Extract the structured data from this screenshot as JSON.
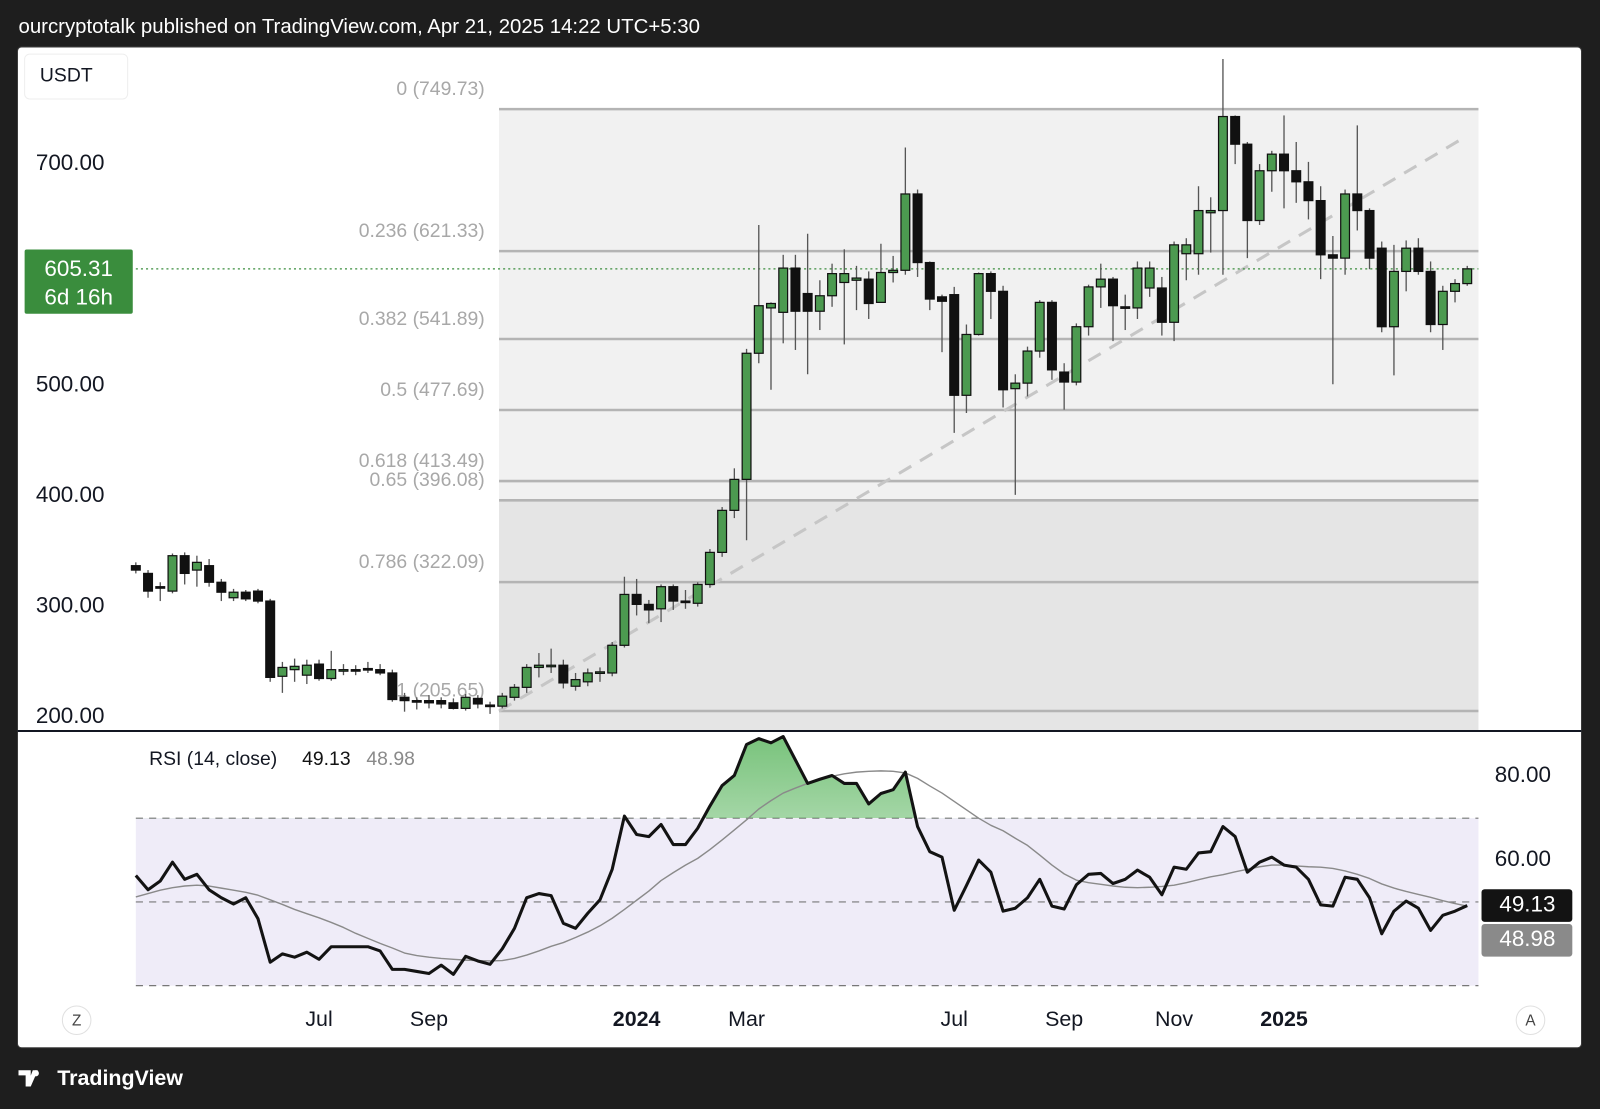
{
  "header": {
    "text": "ourcryptotalk published on TradingView.com, Apr 21, 2025 14:22 UTC+5:30"
  },
  "footer": {
    "brand": "TradingView"
  },
  "controls": {
    "left": "Z",
    "right": "A"
  },
  "chart_data": [
    {
      "type": "candlestick",
      "currency": "USDT",
      "countdown": "6d 16h",
      "up_color": "#4c9a50",
      "down_color": "#111111",
      "last_price_color": "#3a8d3d",
      "categories": [
        null,
        null,
        null,
        null,
        null,
        null,
        null,
        null,
        null,
        null,
        null,
        null,
        null,
        null,
        null,
        "Jul",
        null,
        null,
        null,
        null,
        null,
        null,
        null,
        null,
        "Sep",
        null,
        null,
        null,
        null,
        null,
        null,
        null,
        null,
        null,
        null,
        null,
        null,
        null,
        null,
        null,
        null,
        "2024",
        null,
        null,
        null,
        null,
        null,
        null,
        null,
        null,
        "Mar",
        null,
        null,
        null,
        null,
        null,
        null,
        null,
        null,
        null,
        null,
        null,
        null,
        null,
        null,
        null,
        null,
        "Jul",
        null,
        null,
        null,
        null,
        null,
        null,
        null,
        null,
        "Sep",
        null,
        null,
        null,
        null,
        null,
        null,
        null,
        null,
        "Nov",
        null,
        null,
        null,
        null,
        null,
        null,
        null,
        null,
        "2025",
        null,
        null,
        null,
        null,
        null,
        null,
        null,
        null,
        null,
        null,
        null,
        null,
        null,
        null,
        null
      ],
      "open": [
        337,
        330,
        318,
        314,
        346,
        333,
        337,
        322,
        308,
        313,
        314,
        305,
        237,
        243,
        238,
        248,
        235,
        243,
        243,
        244,
        243,
        240,
        218,
        215,
        215,
        215,
        213,
        208,
        217,
        211,
        210,
        218,
        227,
        245,
        247,
        247,
        228,
        232,
        240,
        240,
        265,
        311,
        302,
        298,
        318,
        305,
        303,
        320,
        349,
        387,
        415,
        529,
        570,
        566,
        606,
        583,
        567,
        581,
        593,
        595,
        596,
        575,
        602,
        604,
        673,
        611,
        580,
        582,
        491,
        546,
        601,
        585,
        497,
        502,
        531,
        575,
        512,
        503,
        553,
        589,
        596,
        571,
        570,
        588,
        588,
        557,
        619,
        619,
        656,
        658,
        743,
        718,
        649,
        694,
        709,
        694,
        684,
        667,
        618,
        615,
        673,
        658,
        624,
        553,
        603,
        624,
        603,
        555,
        585,
        592
      ],
      "high": [
        340,
        333,
        322,
        348,
        349,
        346,
        343,
        325,
        316,
        315,
        316,
        307,
        250,
        253,
        252,
        252,
        260,
        248,
        247,
        250,
        248,
        243,
        222,
        218,
        220,
        218,
        217,
        221,
        220,
        214,
        222,
        230,
        248,
        258,
        262,
        252,
        240,
        244,
        245,
        268,
        327,
        325,
        306,
        320,
        320,
        315,
        322,
        352,
        390,
        425,
        533,
        645,
        575,
        618,
        618,
        637,
        595,
        610,
        623,
        608,
        603,
        628,
        617,
        715,
        677,
        612,
        582,
        589,
        555,
        602,
        603,
        590,
        510,
        535,
        577,
        577,
        520,
        556,
        591,
        610,
        598,
        582,
        612,
        612,
        598,
        630,
        633,
        680,
        670,
        795,
        744,
        720,
        700,
        712,
        744,
        720,
        702,
        680,
        635,
        677,
        735,
        660,
        630,
        627,
        631,
        633,
        612,
        590,
        596,
        608
      ],
      "low": [
        330,
        308,
        305,
        312,
        320,
        318,
        318,
        305,
        305,
        305,
        303,
        232,
        222,
        232,
        230,
        233,
        233,
        238,
        238,
        240,
        238,
        214,
        205,
        207,
        208,
        208,
        207,
        206,
        208,
        203,
        208,
        215,
        222,
        236,
        240,
        226,
        224,
        228,
        232,
        237,
        263,
        292,
        285,
        286,
        297,
        298,
        300,
        317,
        345,
        380,
        360,
        520,
        496,
        538,
        532,
        510,
        550,
        571,
        537,
        568,
        560,
        575,
        593,
        600,
        598,
        568,
        530,
        457,
        475,
        545,
        560,
        480,
        401,
        490,
        525,
        505,
        478,
        500,
        545,
        570,
        540,
        550,
        560,
        580,
        545,
        540,
        595,
        600,
        620,
        600,
        700,
        615,
        645,
        675,
        660,
        665,
        650,
        596,
        501,
        600,
        640,
        605,
        548,
        509,
        585,
        600,
        548,
        532,
        575,
        590
      ],
      "close": [
        333,
        314,
        317,
        346,
        330,
        340,
        322,
        313,
        313,
        307,
        305,
        236,
        245,
        246,
        247,
        235,
        243,
        243,
        242,
        243,
        240,
        216,
        215,
        214,
        213,
        212,
        208,
        218,
        212,
        210,
        219,
        227,
        245,
        247,
        247,
        231,
        234,
        240,
        241,
        265,
        311,
        302,
        297,
        318,
        305,
        304,
        320,
        349,
        387,
        415,
        529,
        572,
        574,
        606,
        567,
        567,
        581,
        601,
        601,
        597,
        574,
        602,
        604,
        673,
        611,
        578,
        576,
        491,
        546,
        601,
        585,
        496,
        502,
        531,
        575,
        514,
        503,
        553,
        589,
        596,
        572,
        570,
        606,
        606,
        557,
        627,
        627,
        658,
        658,
        743,
        718,
        649,
        694,
        709,
        694,
        684,
        667,
        618,
        615,
        673,
        658,
        615,
        553,
        603,
        624,
        603,
        555,
        585,
        592,
        605.31
      ],
      "ylim": [
        188,
        805
      ],
      "yticks": [
        {
          "value": 700,
          "label": "700.00"
        },
        {
          "value": 500,
          "label": "500.00"
        },
        {
          "value": 400,
          "label": "400.00"
        },
        {
          "value": 300,
          "label": "300.00"
        },
        {
          "value": 200,
          "label": "200.00"
        }
      ],
      "grid": false,
      "fib_levels": [
        {
          "value": 749.73,
          "label": "0 (749.73)",
          "fill": "#f1f1f1"
        },
        {
          "value": 621.33,
          "label": "0.236 (621.33)",
          "fill": "#f1f1f1"
        },
        {
          "value": 541.89,
          "label": "0.382 (541.89)",
          "fill": "#f1f1f1"
        },
        {
          "value": 477.69,
          "label": "0.5 (477.69)",
          "fill": "#f1f1f1"
        },
        {
          "value": 413.49,
          "label": "0.618 (413.49)",
          "fill": "#f1f1f1"
        },
        {
          "value": 396.08,
          "label": "0.65 (396.08)",
          "fill": "#e5e5e5"
        },
        {
          "value": 322.09,
          "label": "0.786 (322.09)",
          "fill": "#e5e5e5"
        },
        {
          "value": 205.65,
          "label": "1 (205.65)",
          "fill": "#e5e5e5"
        }
      ],
      "fib_line_color": "#b4b4b4"
    },
    {
      "type": "line",
      "title": "RSI (14, close)",
      "ylim": [
        25.4,
        90.7
      ],
      "yticks": [
        {
          "value": 80,
          "label": "80.00"
        },
        {
          "value": 60,
          "label": "60.00"
        }
      ],
      "levels": [
        70,
        50,
        30
      ],
      "band_color": "#efecf8",
      "overbought_fill": "#4caf50",
      "series": [
        {
          "color": "#131313",
          "values": [
            56.3,
            52.9,
            55,
            59.5,
            55.4,
            56.6,
            52.9,
            51,
            49.5,
            51,
            46,
            35.6,
            37.6,
            36.8,
            38,
            36.3,
            39.3,
            39.3,
            39.3,
            39.3,
            38.3,
            33.9,
            33.9,
            33.4,
            32.9,
            34.9,
            32.7,
            37,
            35.9,
            35.1,
            38.8,
            43.7,
            51,
            52,
            51.5,
            44.9,
            43.7,
            47.3,
            50.5,
            57.8,
            70.5,
            66.1,
            65.6,
            68.5,
            63.7,
            63.7,
            67.6,
            72.9,
            77.8,
            80.2,
            87.6,
            89,
            88,
            89.5,
            83.9,
            78.3,
            79.3,
            80.2,
            78.3,
            78.3,
            73.4,
            75.9,
            76.8,
            81,
            68,
            62,
            60.7,
            48,
            53.9,
            60,
            57.1,
            47.8,
            48.5,
            51,
            55.4,
            49,
            48.3,
            54.1,
            56.6,
            56.8,
            54.4,
            55.4,
            57.6,
            55.9,
            51.7,
            58.3,
            57.8,
            61.7,
            62,
            68,
            65.6,
            57.1,
            59.5,
            60.7,
            58.8,
            58.3,
            55.4,
            49.3,
            49,
            55.9,
            55.4,
            51,
            42.4,
            47.8,
            50.2,
            48.5,
            43.2,
            46.8,
            47.8,
            49.13
          ]
        },
        {
          "color": "#8a8a8a",
          "values": [
            51.2,
            52,
            52.8,
            53.4,
            53.8,
            54,
            53.8,
            53.3,
            52.8,
            52.3,
            51.6,
            50.5,
            49.4,
            48.2,
            47.2,
            46.2,
            45.1,
            43.9,
            42.5,
            41.3,
            40.1,
            39,
            37.8,
            37.2,
            36.8,
            36.5,
            36.3,
            36.1,
            36,
            35.9,
            36,
            36.5,
            37.3,
            38.3,
            39.4,
            40.3,
            41.5,
            42.8,
            44.3,
            46.1,
            48.2,
            50.4,
            52.6,
            55.1,
            57,
            58.8,
            60.4,
            62.5,
            64.8,
            67.2,
            69.6,
            72.2,
            74.2,
            76,
            77.2,
            78.3,
            79.2,
            80,
            80.6,
            81,
            81.2,
            81.3,
            81.2,
            80.8,
            79.5,
            77.7,
            76,
            74,
            72,
            70,
            68.3,
            67,
            65.2,
            63.5,
            61.2,
            58.8,
            56.7,
            55.2,
            54.6,
            54.2,
            53.8,
            53.5,
            53.4,
            53.5,
            53.7,
            54,
            54.6,
            55.3,
            56,
            56.5,
            57.2,
            57.8,
            58.4,
            58.8,
            58.8,
            58.6,
            58.4,
            58.3,
            58,
            57.4,
            56.6,
            55.6,
            54.3,
            53.3,
            52.5,
            51.8,
            51.1,
            50.3,
            49.6,
            48.98
          ]
        }
      ]
    }
  ]
}
